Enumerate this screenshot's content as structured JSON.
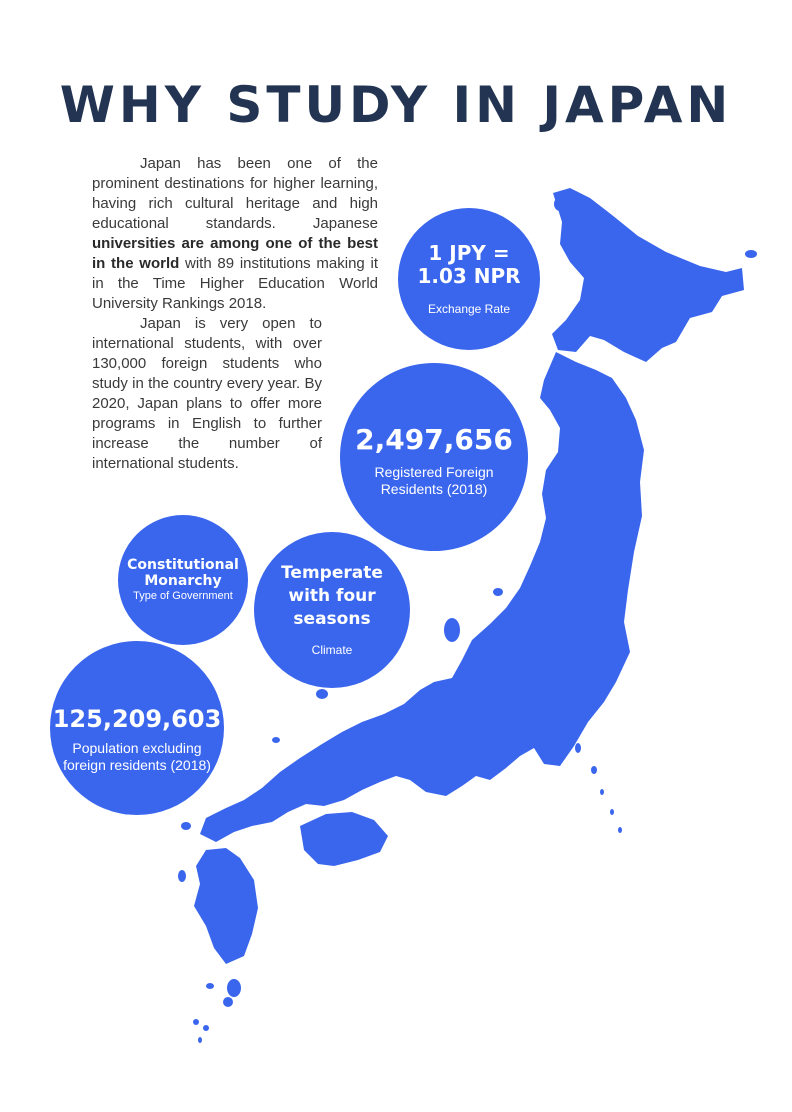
{
  "title": "WHY STUDY IN JAPAN",
  "intro": {
    "p1_before": "Japan has been one of the prominent destinations for higher learning, having rich cultural heritage and high educational standards. Japanese ",
    "p1_bold": "universities are among one of the best in the world",
    "p1_after": " with 89 institutions making it in the Time Higher Education World University Rankings 2018.",
    "p2": "Japan is very open to international students, with over 130,000 foreign students who study in the country every year. By 2020, Japan plans to offer more programs in English to further increase the number of international students."
  },
  "facts": {
    "exchange": {
      "value": "1 JPY = 1.03 NPR",
      "label": "Exchange Rate"
    },
    "residents": {
      "value": "2,497,656",
      "label": "Registered Foreign Residents (2018)"
    },
    "government": {
      "value": "Constitutional Monarchy",
      "label": "Type of Government"
    },
    "climate": {
      "value": "Temperate with four seasons",
      "label": "Climate"
    },
    "population": {
      "value": "125,209,603",
      "label": "Population excluding foreign residents (2018)"
    }
  },
  "colors": {
    "map": "#3a66ee",
    "bubble": "#3a66ee",
    "title": "#223452",
    "text": "#3a3a3a"
  },
  "icons": {
    "map": "japan-map-icon"
  }
}
